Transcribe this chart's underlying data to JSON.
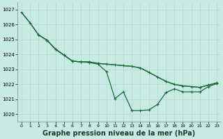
{
  "background_color": "#c8eae4",
  "grid_color": "#a0ccC4",
  "line_color": "#1a6b3a",
  "xlabel": "Graphe pression niveau de la mer (hPa)",
  "xlabel_fontsize": 7,
  "ylim": [
    1019.5,
    1027.5
  ],
  "xlim": [
    -0.5,
    23.5
  ],
  "yticks": [
    1020,
    1021,
    1022,
    1023,
    1024,
    1025,
    1026,
    1027
  ],
  "xticks": [
    0,
    1,
    2,
    3,
    4,
    5,
    6,
    7,
    8,
    9,
    10,
    11,
    12,
    13,
    14,
    15,
    16,
    17,
    18,
    19,
    20,
    21,
    22,
    23
  ],
  "line_smooth": [
    1026.8,
    1026.1,
    1025.3,
    1024.95,
    1024.35,
    1023.95,
    1023.55,
    1023.5,
    1023.5,
    1023.4,
    1023.35,
    1023.3,
    1023.25,
    1023.2,
    1023.1,
    1022.8,
    1022.5,
    1022.2,
    1022.0,
    1021.9,
    1021.85,
    1021.8,
    1021.95,
    1022.1
  ],
  "line_mid_x": [
    2,
    3,
    4,
    5,
    6,
    7,
    8,
    9,
    10,
    11,
    12,
    13,
    14,
    15,
    16,
    17,
    18,
    19,
    20,
    21,
    22,
    23
  ],
  "line_mid": [
    1025.3,
    1024.95,
    1024.35,
    1023.95,
    1023.55,
    1023.5,
    1023.5,
    1023.4,
    1023.35,
    1023.3,
    1023.25,
    1023.2,
    1023.1,
    1022.8,
    1022.5,
    1022.2,
    1022.0,
    1021.9,
    1021.85,
    1021.8,
    1021.95,
    1022.1
  ],
  "line_dip": [
    1026.8,
    1026.1,
    1025.3,
    1024.95,
    1024.35,
    1023.95,
    1023.55,
    1023.5,
    1023.45,
    1023.35,
    1022.85,
    1021.05,
    1021.5,
    1020.25,
    1020.25,
    1020.3,
    1020.65,
    1021.45,
    1021.7,
    1021.5,
    1021.5,
    1021.5,
    1021.85,
    1022.05
  ]
}
